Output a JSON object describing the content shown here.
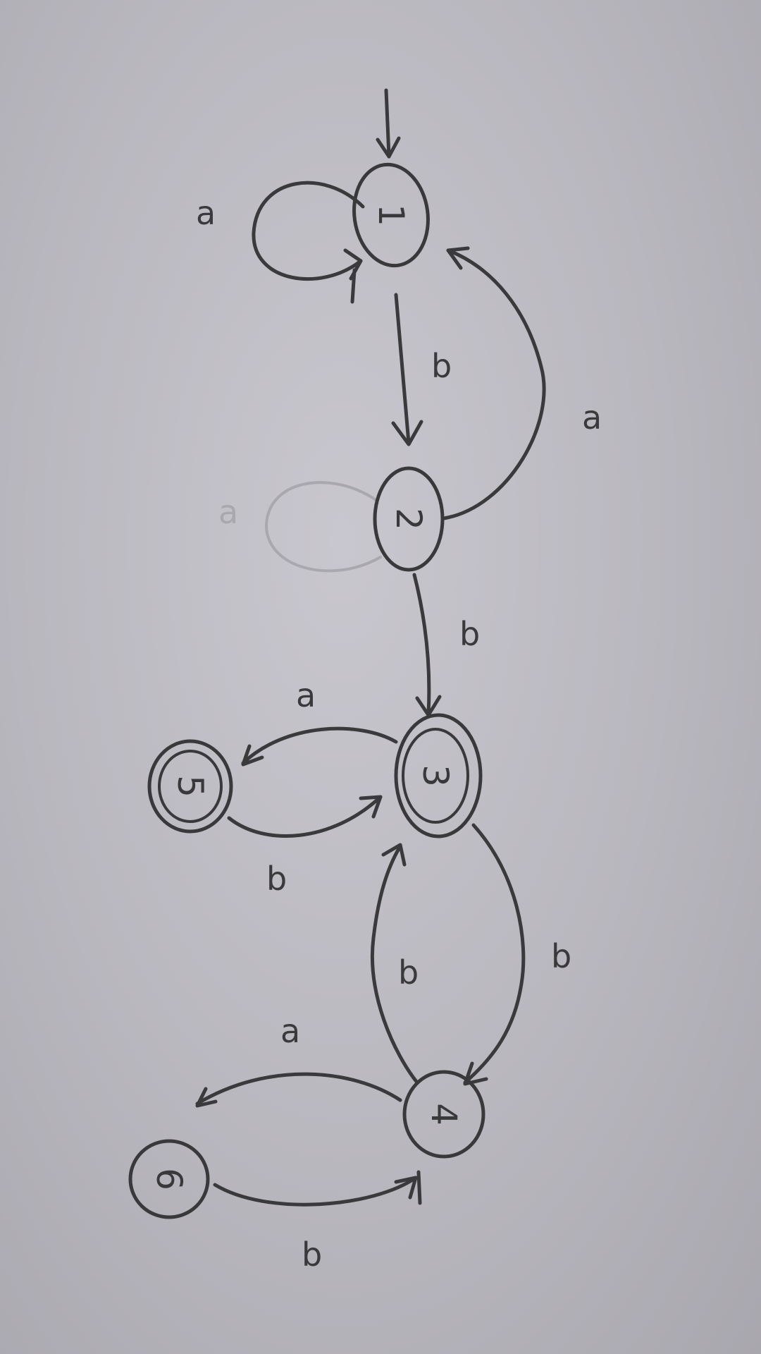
{
  "diagram": {
    "start_state": "1",
    "states": [
      {
        "id": "1",
        "label": "1",
        "accepting": false
      },
      {
        "id": "2",
        "label": "2",
        "accepting": false
      },
      {
        "id": "3",
        "label": "3",
        "accepting": true
      },
      {
        "id": "4",
        "label": "4",
        "accepting": false
      },
      {
        "id": "5",
        "label": "5",
        "accepting": true
      },
      {
        "id": "6",
        "label": "6",
        "accepting": false
      }
    ],
    "transitions": [
      {
        "from": "1",
        "to": "1",
        "symbol": "a"
      },
      {
        "from": "1",
        "to": "2",
        "symbol": "b"
      },
      {
        "from": "2",
        "to": "1",
        "symbol": "a"
      },
      {
        "from": "2",
        "to": "2",
        "symbol": "a",
        "erased": true
      },
      {
        "from": "2",
        "to": "3",
        "symbol": "b"
      },
      {
        "from": "3",
        "to": "5",
        "symbol": "a"
      },
      {
        "from": "5",
        "to": "3",
        "symbol": "b"
      },
      {
        "from": "3",
        "to": "4",
        "symbol": "b"
      },
      {
        "from": "4",
        "to": "3",
        "symbol": "b"
      },
      {
        "from": "4",
        "to": "6",
        "symbol": "a"
      },
      {
        "from": "6",
        "to": "4",
        "symbol": "b"
      }
    ]
  }
}
